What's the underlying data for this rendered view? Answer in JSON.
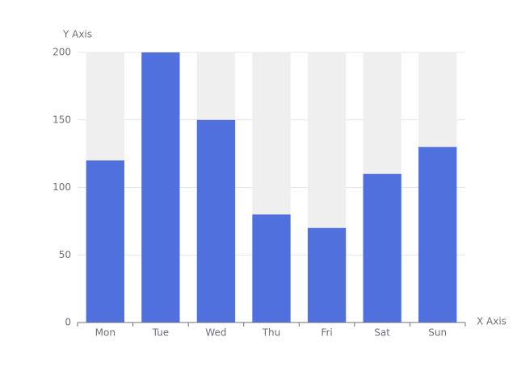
{
  "chart_data": {
    "type": "bar",
    "x_axis_name": "X Axis",
    "y_axis_name": "Y Axis",
    "categories": [
      "Mon",
      "Tue",
      "Wed",
      "Thu",
      "Fri",
      "Sat",
      "Sun"
    ],
    "values": [
      120,
      200,
      150,
      80,
      70,
      110,
      130
    ],
    "color": "#5070dd",
    "show_background": true,
    "background_color": "#efefef",
    "ylim": [
      0,
      200
    ],
    "yticks": [
      0,
      50,
      100,
      150,
      200
    ],
    "grid": true
  }
}
